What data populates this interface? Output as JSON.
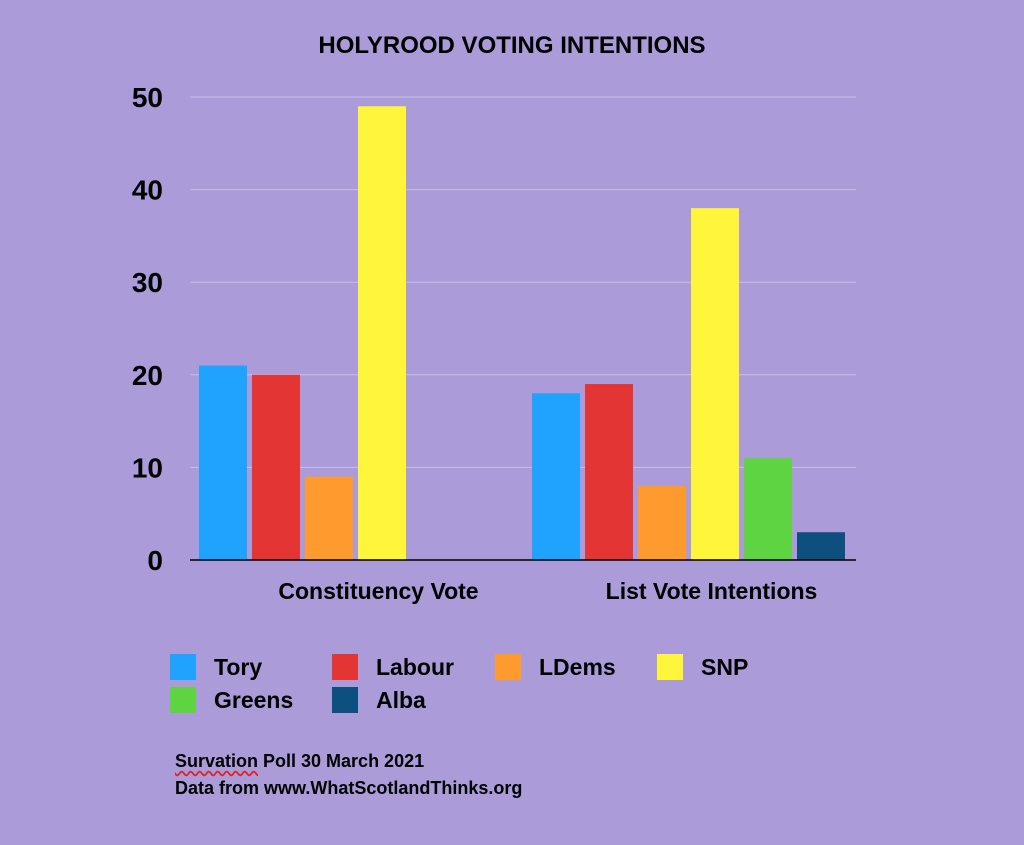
{
  "chart_data": {
    "type": "bar",
    "title": "HOLYROOD VOTING INTENTIONS",
    "categories": [
      "Constituency Vote",
      "List Vote Intentions"
    ],
    "series": [
      {
        "name": "Tory",
        "color": "#1fa3ff",
        "values": [
          21,
          18
        ]
      },
      {
        "name": "Labour",
        "color": "#e43535",
        "values": [
          20,
          19
        ]
      },
      {
        "name": "LDems",
        "color": "#ff9a2e",
        "values": [
          9,
          8
        ]
      },
      {
        "name": "SNP",
        "color": "#fff53a",
        "values": [
          49,
          38
        ]
      },
      {
        "name": "Greens",
        "color": "#5fd443",
        "values": [
          null,
          11
        ]
      },
      {
        "name": "Alba",
        "color": "#0d4f7e",
        "values": [
          null,
          3
        ]
      }
    ],
    "ylim": [
      0,
      50
    ],
    "yticks": [
      0,
      10,
      20,
      30,
      40,
      50
    ],
    "grid": true,
    "legend_position": "bottom"
  },
  "notes": {
    "source_word": "Survation",
    "source_rest": " Poll 30 March 2021",
    "data_line": "Data from www.WhatScotlandThinks.org"
  }
}
